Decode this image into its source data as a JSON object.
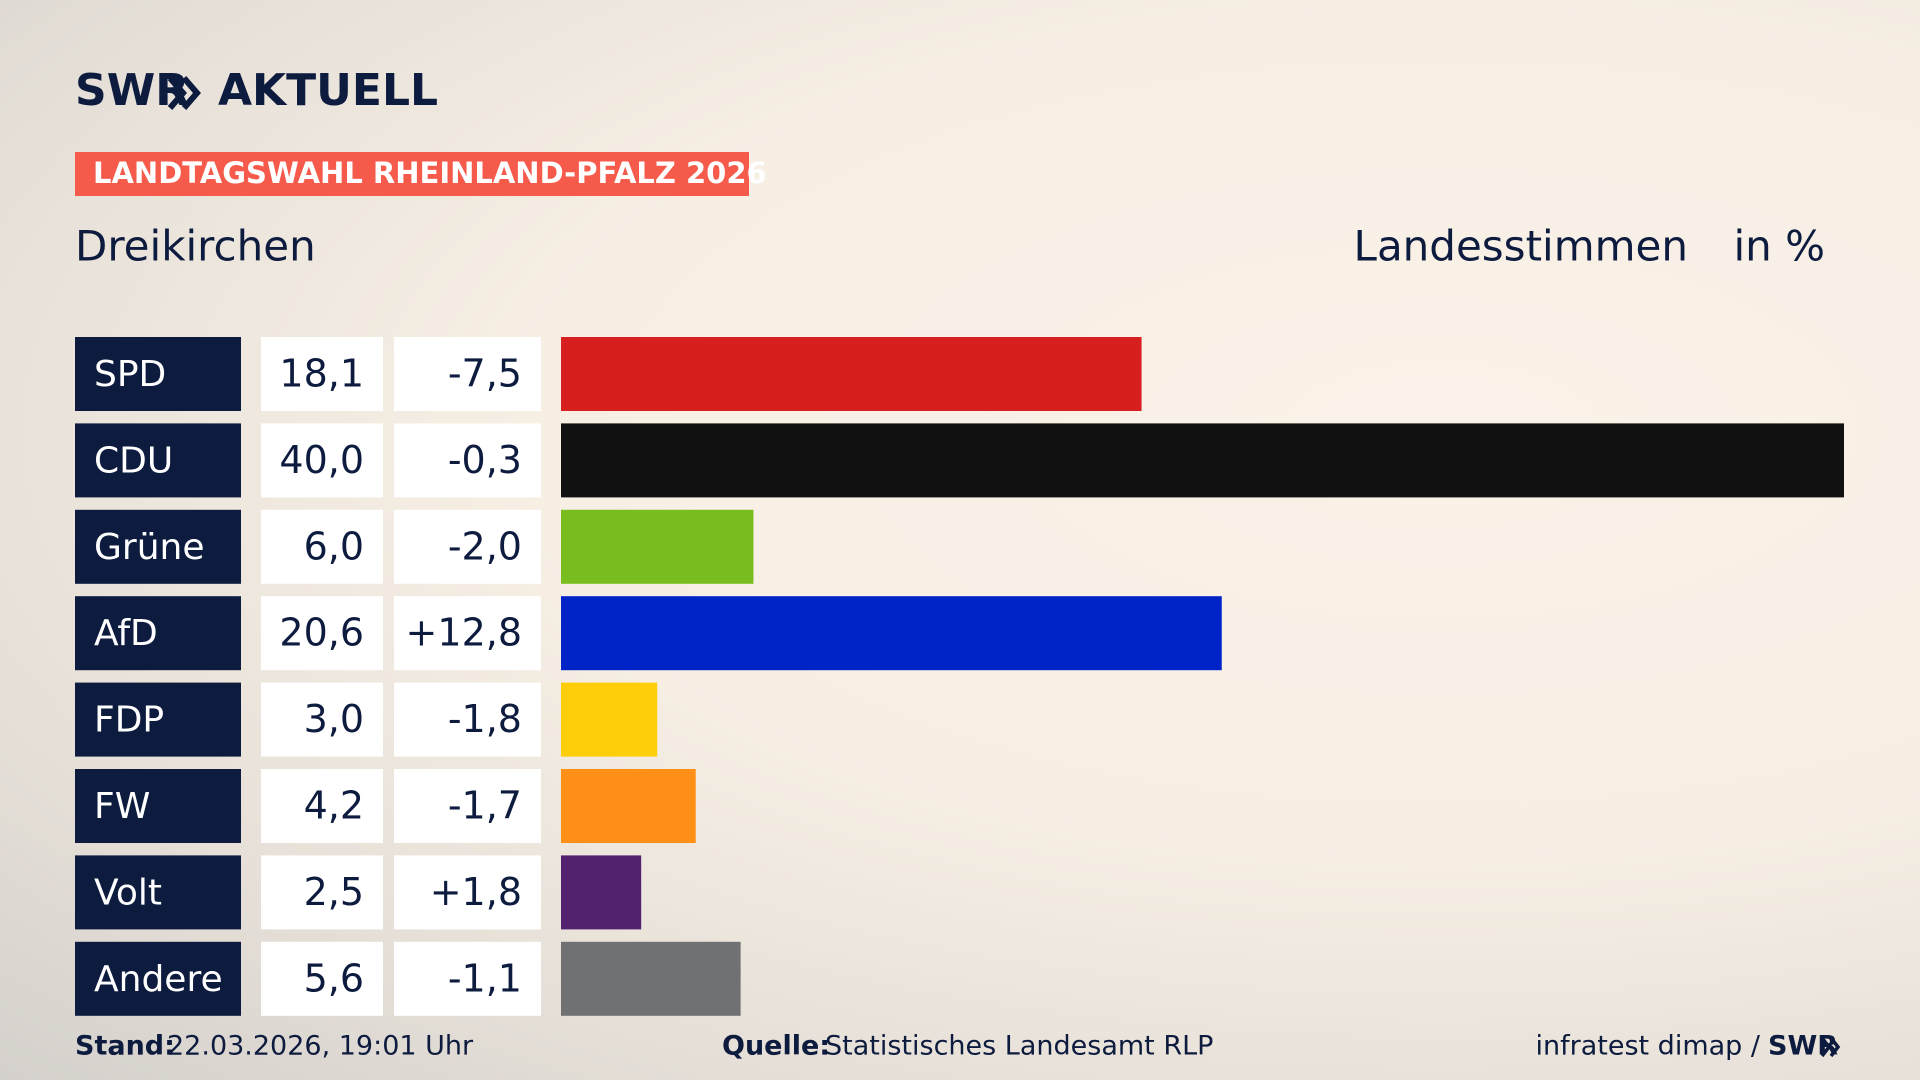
{
  "chart_data": {
    "type": "bar",
    "orientation": "horizontal",
    "brand": "SWR",
    "brand_product": "AKTUELL",
    "banner": "LANDTAGSWAHL RHEINLAND-PFALZ 2026",
    "title": "Dreikirchen",
    "subtitle": "Landesstimmen",
    "unit": "in %",
    "categories": [
      "SPD",
      "CDU",
      "Grüne",
      "AfD",
      "FDP",
      "FW",
      "Volt",
      "Andere"
    ],
    "values": [
      18.1,
      40.0,
      6.0,
      20.6,
      3.0,
      4.2,
      2.5,
      5.6
    ],
    "value_labels": [
      "18,1",
      "40,0",
      "6,0",
      "20,6",
      "3,0",
      "4,2",
      "2,5",
      "5,6"
    ],
    "changes": [
      "-7,5",
      "-0,3",
      "-2,0",
      "+12,8",
      "-1,8",
      "-1,7",
      "+1,8",
      "-1,1"
    ],
    "colors": [
      "#d71f1f",
      "#111111",
      "#79bc1e",
      "#0023c8",
      "#ffce0a",
      "#ff8f17",
      "#52226f",
      "#707172"
    ],
    "xlim": [
      0,
      40
    ],
    "footer": {
      "stand_label": "Stand:",
      "stand": "22.03.2026, 19:01 Uhr",
      "source_label": "Quelle:",
      "source": "Statistisches Landesamt RLP",
      "credit": "infratest dimap /",
      "credit_brand": "SWR"
    }
  }
}
